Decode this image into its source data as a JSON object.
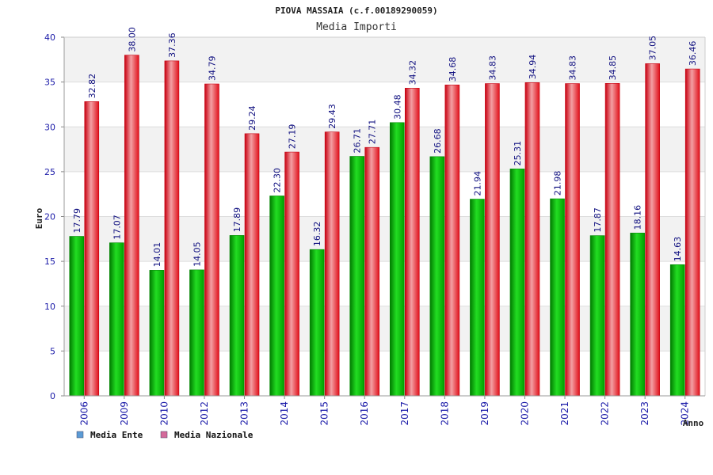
{
  "chart_data": {
    "type": "bar",
    "title": "PIOVA MASSAIA (c.f.00189290059)",
    "subtitle": "Media Importi",
    "ylabel": "Euro",
    "xlabel": "Anno",
    "ylim": [
      0,
      40
    ],
    "yticks": [
      0,
      5,
      10,
      15,
      20,
      25,
      30,
      35,
      40
    ],
    "grid": true,
    "legend_position": "bottom-left",
    "categories": [
      "2006",
      "2009",
      "2010",
      "2012",
      "2013",
      "2014",
      "2015",
      "2016",
      "2017",
      "2018",
      "2019",
      "2020",
      "2021",
      "2022",
      "2023",
      "2024"
    ],
    "series": [
      {
        "name": "Media Ente",
        "color": "#00c000",
        "legend_color": "#5b9bd5",
        "values": [
          17.79,
          17.07,
          14.01,
          14.05,
          17.89,
          22.3,
          16.32,
          26.71,
          30.48,
          26.68,
          21.94,
          25.31,
          21.98,
          17.87,
          18.16,
          14.63
        ],
        "labels": [
          "17.79",
          "17.07",
          "14.01",
          "14.05",
          "17.89",
          "22.30",
          "16.32",
          "26.71",
          "30.48",
          "26.68",
          "21.94",
          "25.31",
          "21.98",
          "17.87",
          "18.16",
          "14.63"
        ]
      },
      {
        "name": "Media Nazionale",
        "color": "#e8101a",
        "legend_color": "#d46a9a",
        "values": [
          32.82,
          38.0,
          37.36,
          34.79,
          29.24,
          27.19,
          29.43,
          27.71,
          34.32,
          34.68,
          34.83,
          34.94,
          34.83,
          34.85,
          37.05,
          36.46
        ],
        "labels": [
          "32.82",
          "38.00",
          "37.36",
          "34.79",
          "29.24",
          "27.19",
          "29.43",
          "27.71",
          "34.32",
          "34.68",
          "34.83",
          "34.94",
          "34.83",
          "34.85",
          "37.05",
          "36.46"
        ]
      }
    ]
  }
}
